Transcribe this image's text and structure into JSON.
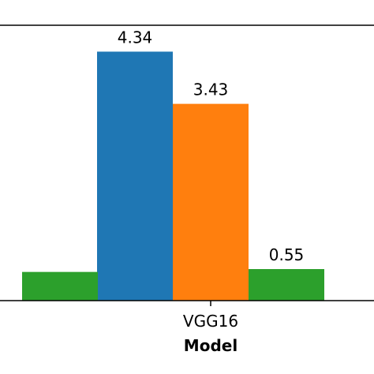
{
  "chart_data": {
    "type": "bar",
    "categories": [
      "",
      "VGG16"
    ],
    "xlabel": "Model",
    "ylim": [
      0,
      4.8
    ],
    "series": [
      {
        "color": "#1f77b4",
        "values": [
          null,
          4.34
        ],
        "labels": [
          "",
          "4.34"
        ]
      },
      {
        "color": "#ff7f0e",
        "values": [
          null,
          3.43
        ],
        "labels": [
          "",
          "3.43"
        ]
      },
      {
        "color": "#2ca02c",
        "values": [
          0.5,
          0.55
        ],
        "labels": [
          "",
          "0.55"
        ]
      }
    ],
    "grid": false
  }
}
